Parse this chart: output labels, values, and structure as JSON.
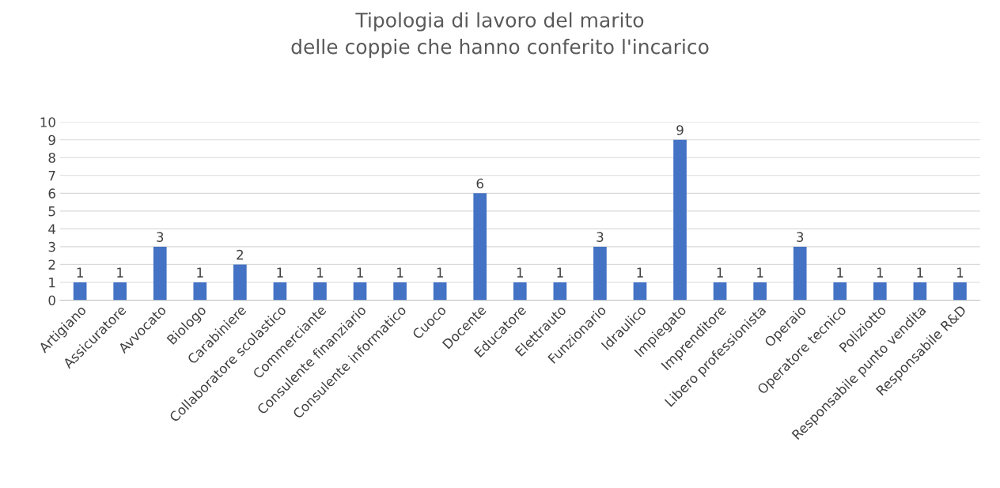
{
  "chart_data": {
    "type": "bar",
    "title": "Tipologia di lavoro del marito\ndelle coppie che hanno conferito l'incarico",
    "categories": [
      "Artigiano",
      "Assicuratore",
      "Avvocato",
      "Biologo",
      "Carabiniere",
      "Collaboratore scolastico",
      "Commerciante",
      "Consulente finanziario",
      "Consulente informatico",
      "Cuoco",
      "Docente",
      "Educatore",
      "Elettrauto",
      "Funzionario",
      "Idraulico",
      "Impiegato",
      "Imprenditore",
      "Libero professionista",
      "Operaio",
      "Operatore tecnico",
      "Poliziotto",
      "Responsabile punto vendita",
      "Responsabile R&D"
    ],
    "values": [
      1,
      1,
      3,
      1,
      2,
      1,
      1,
      1,
      1,
      1,
      6,
      1,
      1,
      3,
      1,
      9,
      1,
      1,
      3,
      1,
      1,
      1,
      1
    ],
    "color": "#4472c4",
    "ylim": [
      0,
      10
    ],
    "yticks": [
      0,
      1,
      2,
      3,
      4,
      5,
      6,
      7,
      8,
      9,
      10
    ],
    "grid": "y",
    "data_labels": true
  }
}
